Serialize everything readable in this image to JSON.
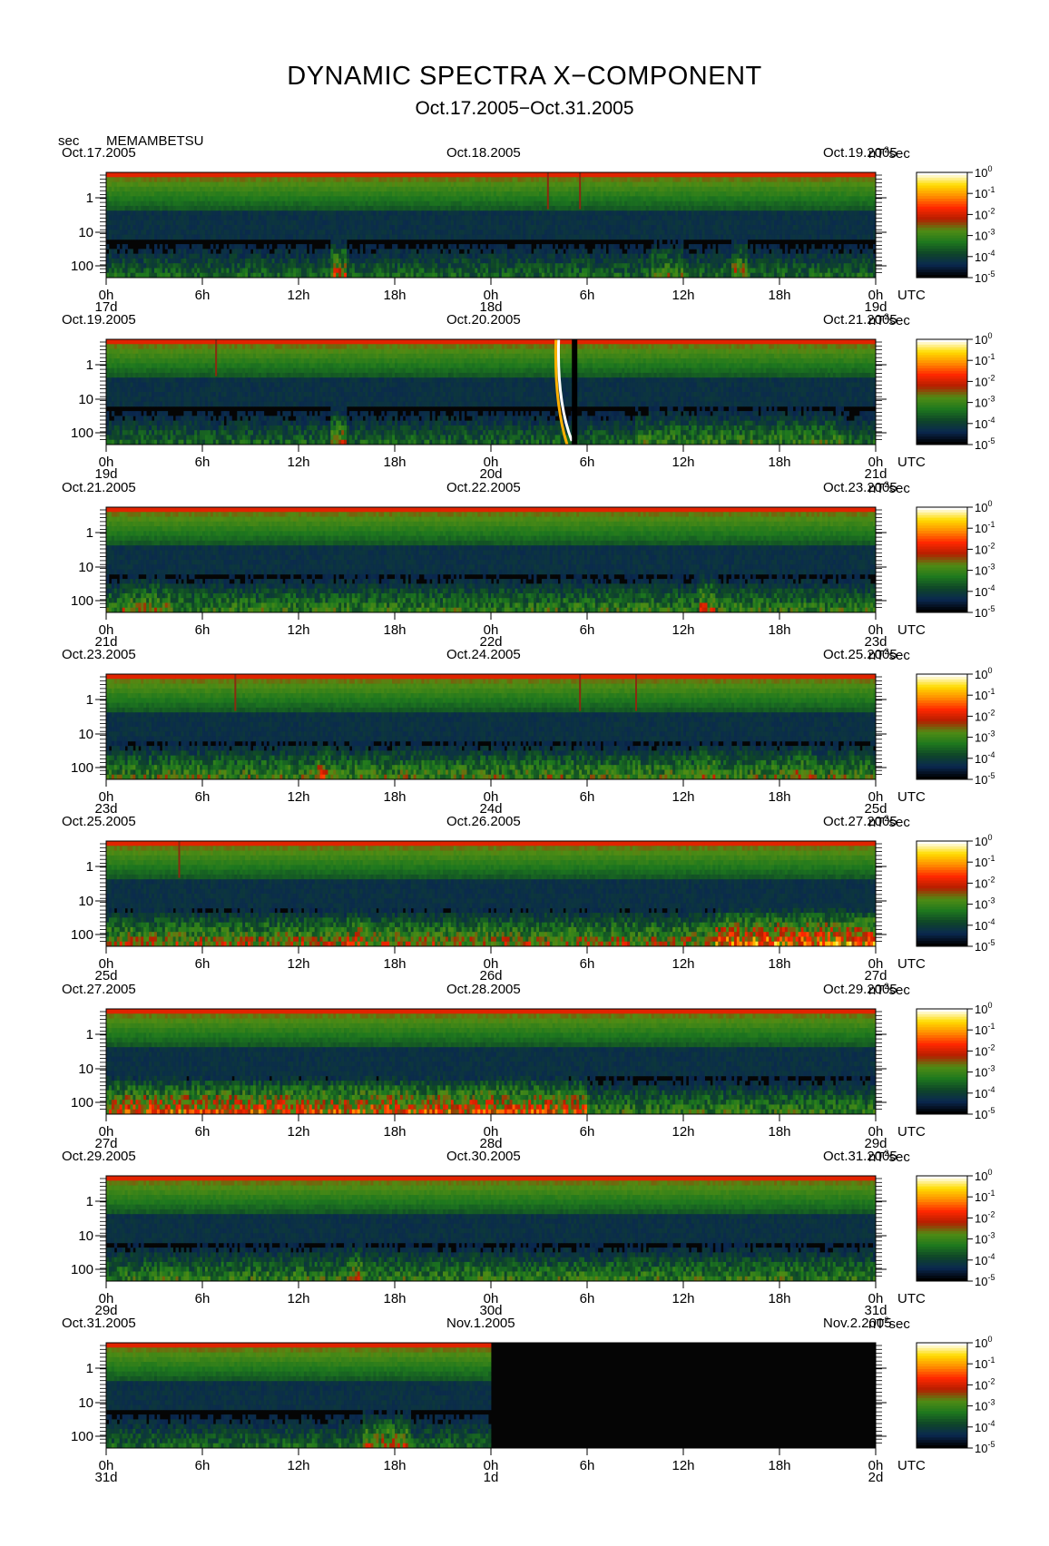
{
  "title": "DYNAMIC SPECTRA X−COMPONENT",
  "subtitle": "Oct.17.2005−Oct.31.2005",
  "header": {
    "y_unit": "sec",
    "station": "MEMAMBETSU"
  },
  "colorbar": {
    "unit_base": "nT",
    "unit_exp": "2",
    "unit_suffix": "sec",
    "ticks": [
      {
        "base": "10",
        "exp": "0"
      },
      {
        "base": "10",
        "exp": "-1"
      },
      {
        "base": "10",
        "exp": "-2"
      },
      {
        "base": "10",
        "exp": "-3"
      },
      {
        "base": "10",
        "exp": "-4"
      },
      {
        "base": "10",
        "exp": "-5"
      }
    ],
    "colors": [
      "#ffffff",
      "#ffff80",
      "#ffd200",
      "#ff8c00",
      "#ff2800",
      "#b41400",
      "#147814",
      "#0a500a",
      "#0a2850",
      "#000000"
    ]
  },
  "chart_data": [
    {
      "type": "heatmap",
      "date_left": "Oct.17.2005",
      "date_mid": "Oct.18.2005",
      "date_right": "Oct.19.2005",
      "x_ticks": [
        "0h",
        "6h",
        "12h",
        "18h",
        "0h",
        "6h",
        "12h",
        "18h",
        "0h"
      ],
      "day_labels": [
        "17d",
        "18d",
        "19d"
      ],
      "x_unit": "UTC",
      "y_ticks": [
        "1",
        "10",
        "100"
      ],
      "data_end_hours": 48,
      "activity": [
        [
          0,
          48,
          0.35
        ],
        [
          14,
          15,
          0.65
        ],
        [
          39,
          40,
          0.6
        ],
        [
          34,
          36,
          0.5
        ]
      ],
      "spikes": [
        27.5,
        29.5
      ]
    },
    {
      "type": "heatmap",
      "date_left": "Oct.19.2005",
      "date_mid": "Oct.20.2005",
      "date_right": "Oct.21.2005",
      "x_ticks": [
        "0h",
        "6h",
        "12h",
        "18h",
        "0h",
        "6h",
        "12h",
        "18h",
        "0h"
      ],
      "day_labels": [
        "19d",
        "20d",
        "21d"
      ],
      "x_unit": "UTC",
      "y_ticks": [
        "1",
        "10",
        "100"
      ],
      "data_end_hours": 48,
      "activity": [
        [
          0,
          48,
          0.35
        ],
        [
          14,
          15,
          0.6
        ],
        [
          33,
          46,
          0.45
        ]
      ],
      "spikes": [
        6.8
      ],
      "event": {
        "start_hours": 28.0,
        "end_hours": 29.5
      }
    },
    {
      "type": "heatmap",
      "date_left": "Oct.21.2005",
      "date_mid": "Oct.22.2005",
      "date_right": "Oct.23.2005",
      "x_ticks": [
        "0h",
        "6h",
        "12h",
        "18h",
        "0h",
        "6h",
        "12h",
        "18h",
        "0h"
      ],
      "day_labels": [
        "21d",
        "22d",
        "23d"
      ],
      "x_unit": "UTC",
      "y_ticks": [
        "1",
        "10",
        "100"
      ],
      "data_end_hours": 48,
      "activity": [
        [
          0,
          48,
          0.45
        ],
        [
          37,
          38,
          0.7
        ],
        [
          1,
          4,
          0.55
        ]
      ],
      "spikes": []
    },
    {
      "type": "heatmap",
      "date_left": "Oct.23.2005",
      "date_mid": "Oct.24.2005",
      "date_right": "Oct.25.2005",
      "x_ticks": [
        "0h",
        "6h",
        "12h",
        "18h",
        "0h",
        "6h",
        "12h",
        "18h",
        "0h"
      ],
      "day_labels": [
        "23d",
        "24d",
        "25d"
      ],
      "x_unit": "UTC",
      "y_ticks": [
        "1",
        "10",
        "100"
      ],
      "data_end_hours": 48,
      "activity": [
        [
          0,
          48,
          0.5
        ],
        [
          13,
          14,
          0.65
        ],
        [
          37,
          38,
          0.6
        ],
        [
          43,
          44,
          0.6
        ]
      ],
      "spikes": [
        8,
        29.5,
        33
      ]
    },
    {
      "type": "heatmap",
      "date_left": "Oct.25.2005",
      "date_mid": "Oct.26.2005",
      "date_right": "Oct.27.2005",
      "x_ticks": [
        "0h",
        "6h",
        "12h",
        "18h",
        "0h",
        "6h",
        "12h",
        "18h",
        "0h"
      ],
      "day_labels": [
        "25d",
        "26d",
        "27d"
      ],
      "x_unit": "UTC",
      "y_ticks": [
        "1",
        "10",
        "100"
      ],
      "data_end_hours": 48,
      "activity": [
        [
          0,
          48,
          0.6
        ],
        [
          38,
          48,
          0.85
        ],
        [
          15,
          16,
          0.7
        ]
      ],
      "spikes": [
        4.5
      ]
    },
    {
      "type": "heatmap",
      "date_left": "Oct.27.2005",
      "date_mid": "Oct.28.2005",
      "date_right": "Oct.29.2005",
      "x_ticks": [
        "0h",
        "6h",
        "12h",
        "18h",
        "0h",
        "6h",
        "12h",
        "18h",
        "0h"
      ],
      "day_labels": [
        "27d",
        "28d",
        "29d"
      ],
      "x_unit": "UTC",
      "y_ticks": [
        "1",
        "10",
        "100"
      ],
      "data_end_hours": 48,
      "activity": [
        [
          0,
          30,
          0.75
        ],
        [
          30,
          48,
          0.45
        ]
      ],
      "spikes": []
    },
    {
      "type": "heatmap",
      "date_left": "Oct.29.2005",
      "date_mid": "Oct.30.2005",
      "date_right": "Oct.31.2005",
      "x_ticks": [
        "0h",
        "6h",
        "12h",
        "18h",
        "0h",
        "6h",
        "12h",
        "18h",
        "0h"
      ],
      "day_labels": [
        "29d",
        "30d",
        "31d"
      ],
      "x_unit": "UTC",
      "y_ticks": [
        "1",
        "10",
        "100"
      ],
      "data_end_hours": 48,
      "activity": [
        [
          0,
          48,
          0.45
        ],
        [
          15,
          16,
          0.6
        ]
      ],
      "spikes": []
    },
    {
      "type": "heatmap",
      "date_left": "Oct.31.2005",
      "date_mid": "Nov.1.2005",
      "date_right": "Nov.2.2005",
      "x_ticks": [
        "0h",
        "6h",
        "12h",
        "18h",
        "0h",
        "6h",
        "12h",
        "18h",
        "0h"
      ],
      "day_labels": [
        "31d",
        "1d",
        "2d"
      ],
      "x_unit": "UTC",
      "y_ticks": [
        "1",
        "10",
        "100"
      ],
      "data_end_hours": 24,
      "activity": [
        [
          0,
          24,
          0.35
        ],
        [
          16,
          19,
          0.6
        ]
      ],
      "spikes": []
    }
  ]
}
